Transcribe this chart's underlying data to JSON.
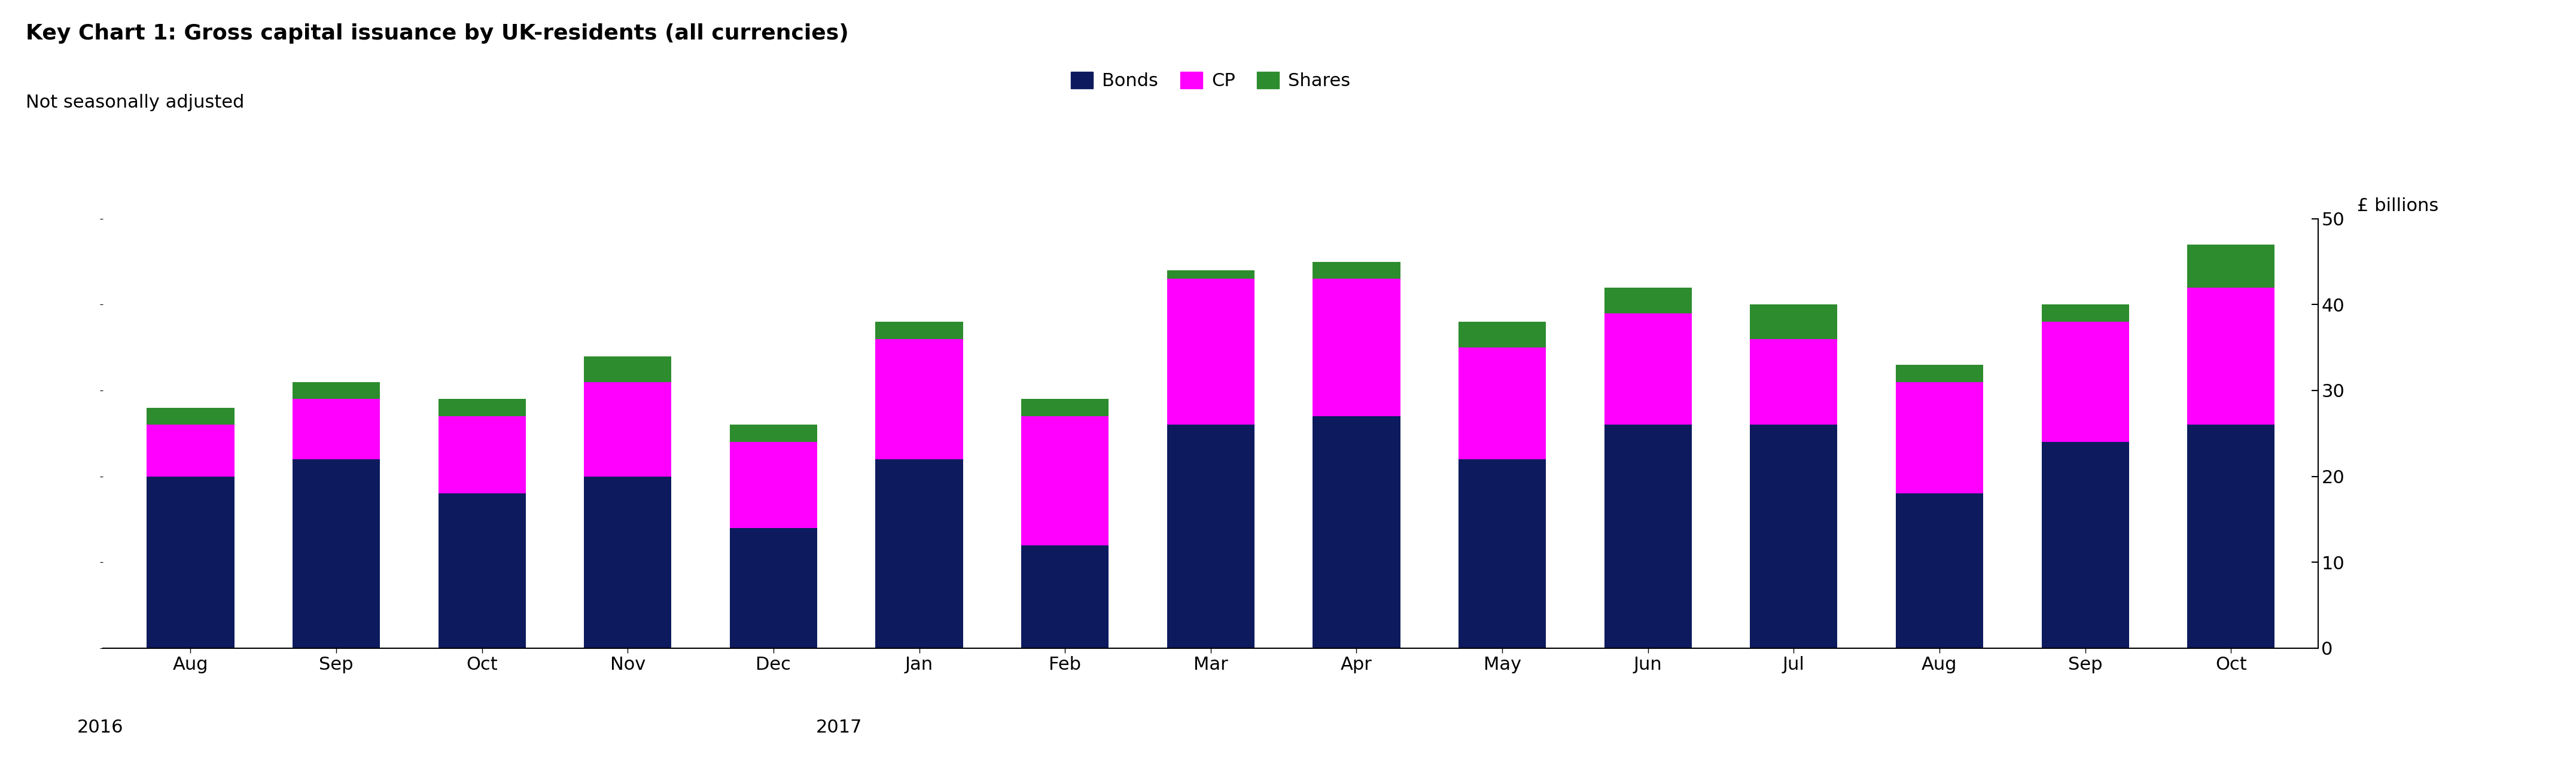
{
  "title": "Key Chart 1: Gross capital issuance by UK-residents (all currencies)",
  "subtitle": "Not seasonally adjusted",
  "ylabel_right": "£ billions",
  "categories": [
    "Aug",
    "Sep",
    "Oct",
    "Nov",
    "Dec",
    "Jan",
    "Feb",
    "Mar",
    "Apr",
    "May",
    "Jun",
    "Jul",
    "Aug",
    "Sep",
    "Oct"
  ],
  "bonds": [
    20,
    22,
    18,
    20,
    14,
    22,
    12,
    26,
    27,
    22,
    26,
    26,
    18,
    24,
    26
  ],
  "cp": [
    6,
    7,
    9,
    11,
    10,
    14,
    15,
    17,
    16,
    13,
    13,
    10,
    13,
    14,
    16
  ],
  "shares": [
    2,
    2,
    2,
    3,
    2,
    2,
    2,
    1,
    2,
    3,
    3,
    4,
    2,
    2,
    5
  ],
  "bonds_color": "#0d1b5e",
  "cp_color": "#ff00ff",
  "shares_color": "#2d8c2d",
  "ylim": [
    0,
    50
  ],
  "yticks": [
    0,
    10,
    20,
    30,
    40,
    50
  ],
  "background_color": "#ffffff",
  "title_fontsize": 26,
  "subtitle_fontsize": 22,
  "tick_fontsize": 22,
  "legend_fontsize": 22,
  "ylabel_fontsize": 22,
  "year_fontsize": 22,
  "bar_width": 0.6
}
